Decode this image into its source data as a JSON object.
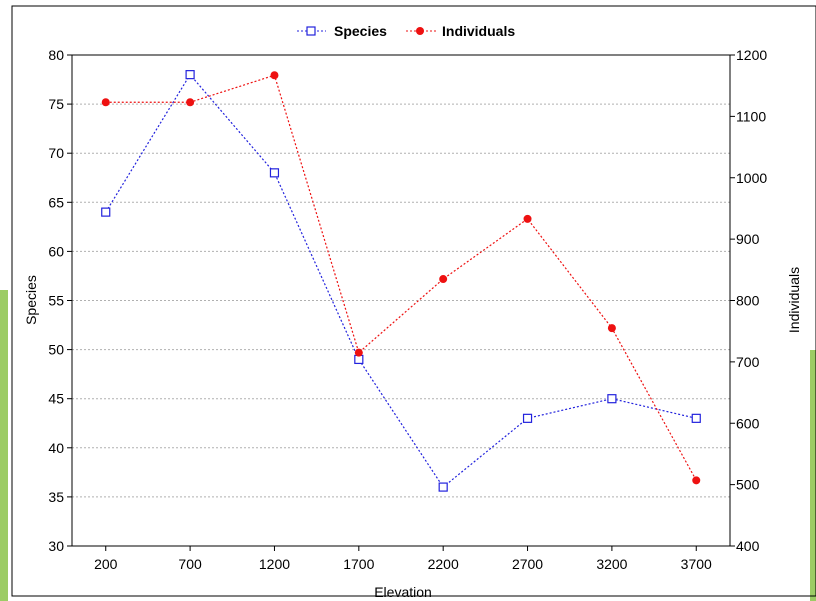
{
  "chart_data": {
    "type": "line",
    "title": "",
    "xlabel": "Elevation",
    "ylabel": "Species",
    "y2label": "Individuals",
    "x": [
      200,
      700,
      1200,
      1700,
      2200,
      2700,
      3200,
      3700
    ],
    "x_ticks": [
      "200",
      "700",
      "1200",
      "1700",
      "2200",
      "2700",
      "3200",
      "3700"
    ],
    "ylim": [
      30,
      80
    ],
    "y_ticks": [
      "30",
      "35",
      "40",
      "45",
      "50",
      "55",
      "60",
      "65",
      "70",
      "75",
      "80"
    ],
    "y2lim": [
      400,
      1200
    ],
    "y2_ticks": [
      "400",
      "500",
      "600",
      "700",
      "800",
      "900",
      "1000",
      "1100",
      "1200"
    ],
    "grid": true,
    "legend_position": "top-center",
    "series": [
      {
        "name": "Species",
        "axis": "left",
        "marker": "open-square",
        "line_style": "dotted",
        "color": "#2222dd",
        "values": [
          64,
          78,
          68,
          49,
          36,
          43,
          45,
          43
        ]
      },
      {
        "name": "Individuals",
        "axis": "right",
        "marker": "filled-circle",
        "line_style": "dotted",
        "color": "#ee1111",
        "values": [
          1123,
          1123,
          1167,
          715,
          835,
          933,
          755,
          507
        ]
      }
    ]
  },
  "decor": {
    "accent_colors": [
      "#8bc34a",
      "#c5e1a5"
    ]
  }
}
